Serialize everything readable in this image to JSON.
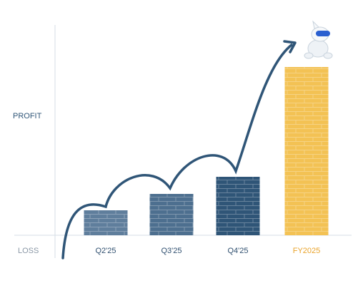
{
  "chart_data": {
    "type": "bar",
    "axis_labels": {
      "top": "PROFIT",
      "bottom": "LOSS"
    },
    "categories": [
      "Q2'25",
      "Q3'25",
      "Q4'25",
      "FY2025"
    ],
    "values": [
      35,
      58,
      82,
      236
    ],
    "colors": [
      "#5f7e9c",
      "#4d6f8f",
      "#2f5577",
      "#f3c254"
    ],
    "label_colors": [
      "#2f4f6f",
      "#2f4f6f",
      "#2f4f6f",
      "#e9a32a"
    ],
    "ylim": [
      0,
      300
    ]
  }
}
